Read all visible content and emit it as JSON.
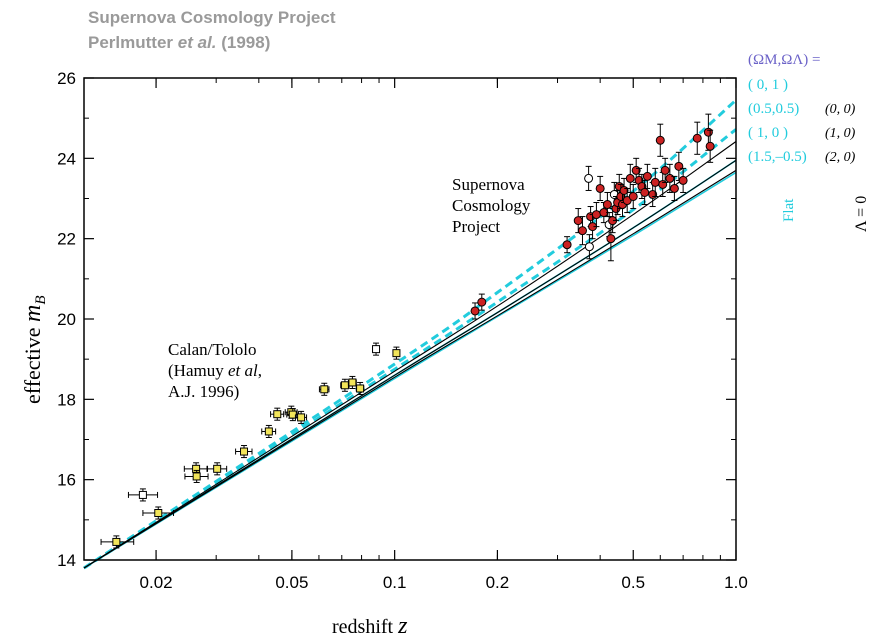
{
  "header": {
    "line1": "Supernova Cosmology Project",
    "line2_a": "Perlmutter ",
    "line2_b": "et al.",
    "line2_c": " (1998)"
  },
  "chart_data": {
    "type": "scatter",
    "xlabel_a": "redshift ",
    "xlabel_b": "z",
    "ylabel_a": "effective ",
    "ylabel_b": "m",
    "ylabel_sub": "B",
    "xscale": "log",
    "xlim": [
      0.0123,
      1.0
    ],
    "ylim": [
      14,
      26
    ],
    "xticks": [
      0.02,
      0.05,
      0.1,
      0.2,
      0.5,
      1.0
    ],
    "xtick_labels": [
      "0.02",
      "0.05",
      "0.1",
      "0.2",
      "0.5",
      "1.0"
    ],
    "yticks": [
      14,
      16,
      18,
      20,
      22,
      24,
      26
    ],
    "ytick_labels": [
      "14",
      "16",
      "18",
      "20",
      "22",
      "24",
      "26"
    ],
    "annotations": {
      "scp": [
        "Supernova",
        "Cosmology",
        "Project"
      ],
      "calan": [
        "Calan/Tololo",
        "(Hamuy ",
        "et al",
        ",",
        "A.J. 1996)"
      ]
    },
    "legend": {
      "placement": "right",
      "header": "(ΩM,ΩΛ) =",
      "flat_label": "Flat",
      "lambda0_label": "Λ = 0",
      "flat_entries": [
        "( 0,  1 )",
        "(0.5,0.5)",
        "( 1,   0 )",
        "(1.5,–0.5)"
      ],
      "lambda0_entries": [
        "(0, 0)",
        "(1, 0)",
        "(2, 0)"
      ]
    },
    "colors": {
      "calan": "#f2e55a",
      "scp": "#cc2222",
      "open": "#ffffff",
      "flat_model": "#22ccdd",
      "lambda0_model": "#000000",
      "header_text": "#9a9a9a"
    },
    "models": [
      {
        "kind": "flat",
        "label": "(0,1)",
        "dashed": true,
        "points": [
          [
            0.0123,
            13.8
          ],
          [
            0.1,
            18.88
          ],
          [
            0.2,
            20.66
          ],
          [
            0.5,
            23.18
          ],
          [
            1.0,
            25.45
          ]
        ]
      },
      {
        "kind": "flat",
        "label": "(0.5,0.5)",
        "dashed": true,
        "points": [
          [
            0.0123,
            13.8
          ],
          [
            0.1,
            18.75
          ],
          [
            0.2,
            20.42
          ],
          [
            0.5,
            22.72
          ],
          [
            1.0,
            24.72
          ]
        ]
      },
      {
        "kind": "flat",
        "label": "(1,0)",
        "dashed": false,
        "points": [
          [
            0.0123,
            13.8
          ],
          [
            0.1,
            18.6
          ],
          [
            0.2,
            20.16
          ],
          [
            0.5,
            22.27
          ],
          [
            1.0,
            23.95
          ]
        ]
      },
      {
        "kind": "flat",
        "label": "(1.5,-0.5)",
        "dashed": false,
        "points": [
          [
            0.0123,
            13.8
          ],
          [
            0.1,
            18.52
          ],
          [
            0.2,
            20.06
          ],
          [
            0.5,
            22.08
          ],
          [
            1.0,
            23.65
          ]
        ]
      },
      {
        "kind": "lambda0",
        "label": "(0,0)",
        "dashed": false,
        "points": [
          [
            0.0123,
            13.8
          ],
          [
            0.1,
            18.7
          ],
          [
            0.2,
            20.32
          ],
          [
            0.5,
            22.6
          ],
          [
            1.0,
            24.42
          ]
        ]
      },
      {
        "kind": "lambda0",
        "label": "(1,0)",
        "dashed": false,
        "points": [
          [
            0.0123,
            13.8
          ],
          [
            0.1,
            18.6
          ],
          [
            0.2,
            20.16
          ],
          [
            0.5,
            22.27
          ],
          [
            1.0,
            23.95
          ]
        ]
      },
      {
        "kind": "lambda0",
        "label": "(2,0)",
        "dashed": false,
        "points": [
          [
            0.0123,
            13.8
          ],
          [
            0.1,
            18.55
          ],
          [
            0.2,
            20.08
          ],
          [
            0.5,
            22.12
          ],
          [
            1.0,
            23.7
          ]
        ]
      }
    ],
    "series": [
      {
        "name": "Calan/Tololo",
        "points": [
          {
            "x": 0.0153,
            "y": 14.45,
            "ey": 0.15,
            "xlo": 0.0138,
            "xhi": 0.0172
          },
          {
            "x": 0.0183,
            "y": 15.62,
            "ey": 0.15,
            "xlo": 0.0166,
            "xhi": 0.0202,
            "open": true
          },
          {
            "x": 0.0203,
            "y": 15.17,
            "ey": 0.15,
            "xlo": 0.0183,
            "xhi": 0.0225
          },
          {
            "x": 0.0262,
            "y": 16.27,
            "ey": 0.15,
            "xlo": 0.0242,
            "xhi": 0.0283
          },
          {
            "x": 0.0263,
            "y": 16.08,
            "ey": 0.15,
            "xlo": 0.0243,
            "xhi": 0.0284
          },
          {
            "x": 0.0302,
            "y": 16.27,
            "ey": 0.15,
            "xlo": 0.0282,
            "xhi": 0.0322
          },
          {
            "x": 0.0362,
            "y": 16.7,
            "ey": 0.15,
            "xlo": 0.0342,
            "xhi": 0.0382
          },
          {
            "x": 0.0428,
            "y": 17.2,
            "ey": 0.15,
            "xlo": 0.0408,
            "xhi": 0.0448
          },
          {
            "x": 0.0453,
            "y": 17.63,
            "ey": 0.15,
            "xlo": 0.0433,
            "xhi": 0.0473
          },
          {
            "x": 0.0498,
            "y": 17.68,
            "ey": 0.15,
            "xlo": 0.0478,
            "xhi": 0.0518
          },
          {
            "x": 0.0503,
            "y": 17.62,
            "ey": 0.15,
            "xlo": 0.0483,
            "xhi": 0.0523
          },
          {
            "x": 0.0532,
            "y": 17.55,
            "ey": 0.15,
            "xlo": 0.0512,
            "xhi": 0.0552
          },
          {
            "x": 0.0622,
            "y": 18.25,
            "ey": 0.15,
            "xlo": 0.0602,
            "xhi": 0.0642
          },
          {
            "x": 0.0715,
            "y": 18.35,
            "ey": 0.15,
            "xlo": 0.0695,
            "xhi": 0.0735
          },
          {
            "x": 0.0752,
            "y": 18.42,
            "ey": 0.15,
            "xlo": 0.0732,
            "xhi": 0.0772
          },
          {
            "x": 0.0792,
            "y": 18.27,
            "ey": 0.15,
            "xlo": 0.0772,
            "xhi": 0.0812
          },
          {
            "x": 0.0882,
            "y": 19.25,
            "ey": 0.15,
            "xlo": 0.0862,
            "xhi": 0.0902,
            "open": true
          },
          {
            "x": 0.1012,
            "y": 19.15,
            "ey": 0.15,
            "xlo": 0.0992,
            "xhi": 0.1032
          }
        ]
      },
      {
        "name": "Supernova Cosmology Project",
        "points": [
          {
            "x": 0.172,
            "y": 20.2,
            "ey": 0.2
          },
          {
            "x": 0.18,
            "y": 20.42,
            "ey": 0.2
          },
          {
            "x": 0.32,
            "y": 21.85,
            "ey": 0.2
          },
          {
            "x": 0.345,
            "y": 22.45,
            "ey": 0.3
          },
          {
            "x": 0.355,
            "y": 22.2,
            "ey": 0.35
          },
          {
            "x": 0.37,
            "y": 23.5,
            "ey": 0.3,
            "open": true
          },
          {
            "x": 0.372,
            "y": 21.8,
            "ey": 0.3,
            "open": true
          },
          {
            "x": 0.375,
            "y": 22.55,
            "ey": 0.25
          },
          {
            "x": 0.38,
            "y": 22.3,
            "ey": 0.3
          },
          {
            "x": 0.39,
            "y": 22.6,
            "ey": 0.3
          },
          {
            "x": 0.4,
            "y": 23.25,
            "ey": 0.3
          },
          {
            "x": 0.41,
            "y": 22.65,
            "ey": 0.25
          },
          {
            "x": 0.42,
            "y": 22.85,
            "ey": 0.3
          },
          {
            "x": 0.425,
            "y": 22.35,
            "ey": 0.3,
            "open": true
          },
          {
            "x": 0.43,
            "y": 22.0,
            "ey": 0.55
          },
          {
            "x": 0.435,
            "y": 22.45,
            "ey": 0.3
          },
          {
            "x": 0.44,
            "y": 23.1,
            "ey": 0.3,
            "open": true
          },
          {
            "x": 0.445,
            "y": 22.75,
            "ey": 0.3
          },
          {
            "x": 0.45,
            "y": 22.9,
            "ey": 0.3
          },
          {
            "x": 0.455,
            "y": 23.3,
            "ey": 0.3
          },
          {
            "x": 0.46,
            "y": 23.05,
            "ey": 0.3
          },
          {
            "x": 0.465,
            "y": 22.85,
            "ey": 0.3
          },
          {
            "x": 0.47,
            "y": 23.2,
            "ey": 0.3
          },
          {
            "x": 0.48,
            "y": 22.95,
            "ey": 0.3
          },
          {
            "x": 0.49,
            "y": 23.5,
            "ey": 0.35
          },
          {
            "x": 0.5,
            "y": 23.05,
            "ey": 0.3
          },
          {
            "x": 0.51,
            "y": 23.7,
            "ey": 0.3
          },
          {
            "x": 0.52,
            "y": 23.45,
            "ey": 0.3
          },
          {
            "x": 0.53,
            "y": 23.3,
            "ey": 0.3
          },
          {
            "x": 0.54,
            "y": 23.15,
            "ey": 0.3
          },
          {
            "x": 0.55,
            "y": 23.55,
            "ey": 0.3
          },
          {
            "x": 0.57,
            "y": 23.1,
            "ey": 0.3
          },
          {
            "x": 0.58,
            "y": 23.4,
            "ey": 0.35
          },
          {
            "x": 0.6,
            "y": 24.45,
            "ey": 0.4
          },
          {
            "x": 0.61,
            "y": 23.35,
            "ey": 0.3
          },
          {
            "x": 0.62,
            "y": 23.7,
            "ey": 0.3
          },
          {
            "x": 0.64,
            "y": 23.5,
            "ey": 0.35
          },
          {
            "x": 0.66,
            "y": 23.25,
            "ey": 0.3
          },
          {
            "x": 0.68,
            "y": 23.8,
            "ey": 0.35
          },
          {
            "x": 0.7,
            "y": 23.45,
            "ey": 0.3
          },
          {
            "x": 0.77,
            "y": 24.5,
            "ey": 0.4
          },
          {
            "x": 0.83,
            "y": 24.65,
            "ey": 0.45
          },
          {
            "x": 0.84,
            "y": 24.3,
            "ey": 0.4
          }
        ]
      }
    ]
  }
}
